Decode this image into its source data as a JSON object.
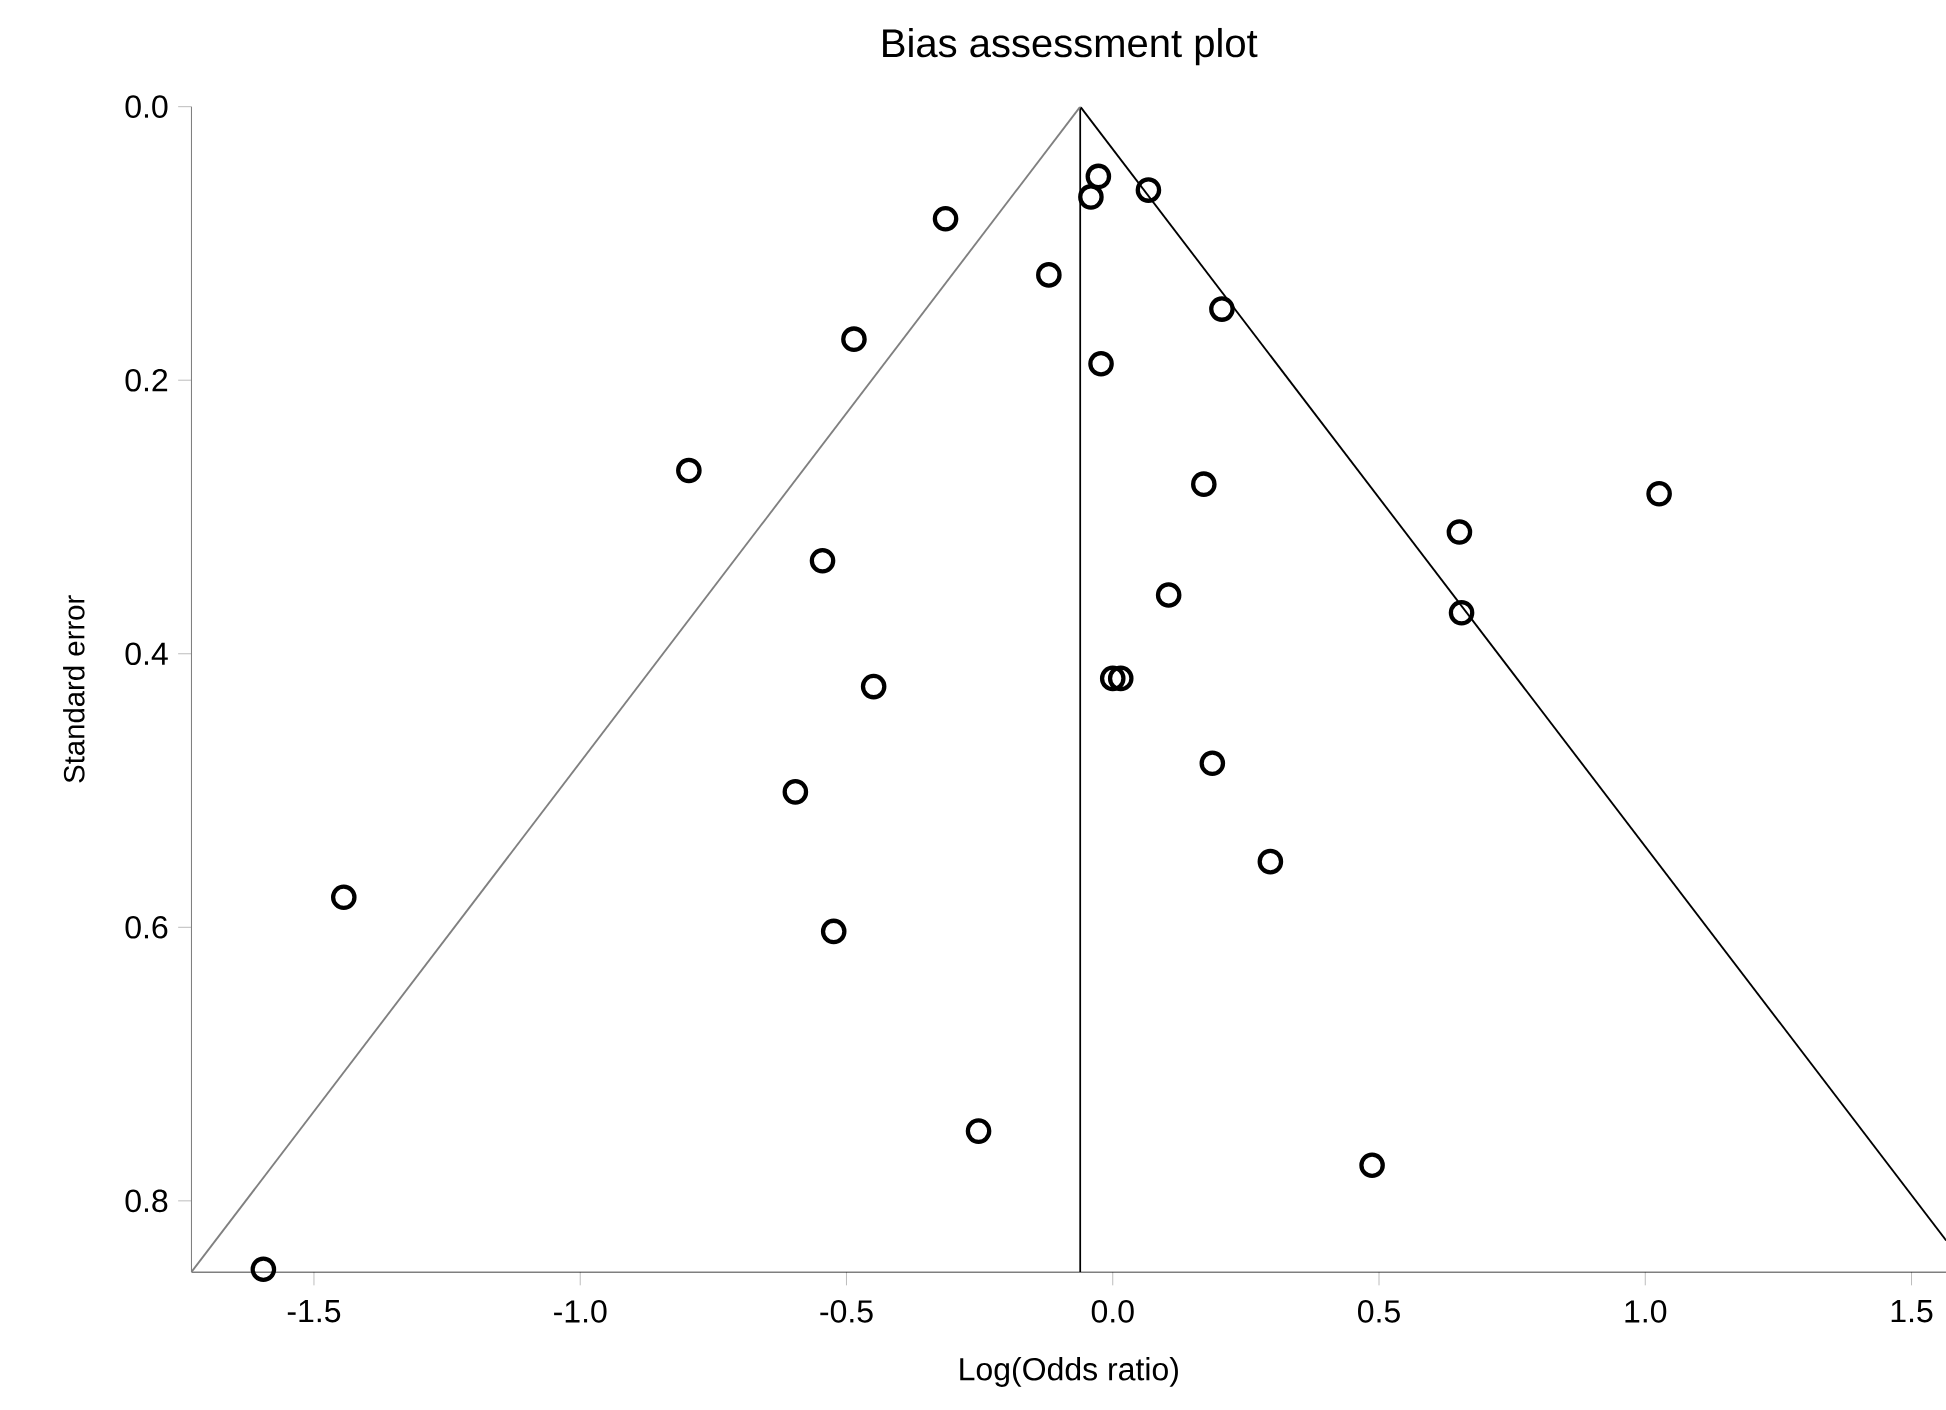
{
  "chart_data": {
    "type": "scatter",
    "title": "Bias assessment plot",
    "xlabel": "Log(Odds ratio)",
    "ylabel": "Standard error",
    "marker": "circle",
    "xlim": [
      -1.73,
      1.565
    ],
    "ylim": [
      0.852,
      0
    ],
    "xticks": [
      -1.5,
      {
        "value": -1.0,
        "label": "-1.0"
      },
      -0.5,
      {
        "value": 0,
        "label": "0.0"
      },
      0.5,
      {
        "value": 1.0,
        "label": "1.0"
      },
      1.5
    ],
    "yticks": [
      {
        "value": 0,
        "label": "0.0"
      },
      0.2,
      0.4,
      0.6,
      0.8
    ],
    "ref_lines": [
      {
        "axis": "x",
        "value": -0.061,
        "color": "#000000"
      }
    ],
    "series": [
      {
        "color": "#000000",
        "x": [
          -0.027,
          -0.041,
          0.067,
          -0.314,
          -0.12,
          -0.486,
          -0.022,
          -0.796,
          -0.545,
          0.105,
          0.0,
          0.015,
          -0.449,
          -0.596,
          0.205,
          0.171,
          1.026,
          0.651,
          0.655,
          0.187,
          -1.444,
          -0.524,
          -0.252,
          -1.595,
          0.296,
          0.487
        ],
        "values": [
          0.051,
          0.066,
          0.061,
          0.082,
          0.123,
          0.17,
          0.188,
          0.266,
          0.332,
          0.357,
          0.418,
          0.418,
          0.424,
          0.501,
          0.148,
          0.276,
          0.283,
          0.311,
          0.37,
          0.48,
          0.578,
          0.603,
          0.749,
          0.85,
          0.552,
          0.774
        ]
      },
      {
        "type": "line",
        "marker": "none",
        "color": "#808080",
        "x": [
          -1.73,
          -0.061
        ],
        "values": [
          0.852,
          0
        ]
      },
      {
        "type": "line",
        "marker": "none",
        "color": "#000000",
        "x": [
          -0.061,
          1.565
        ],
        "values": [
          0,
          0.829
        ]
      }
    ]
  }
}
